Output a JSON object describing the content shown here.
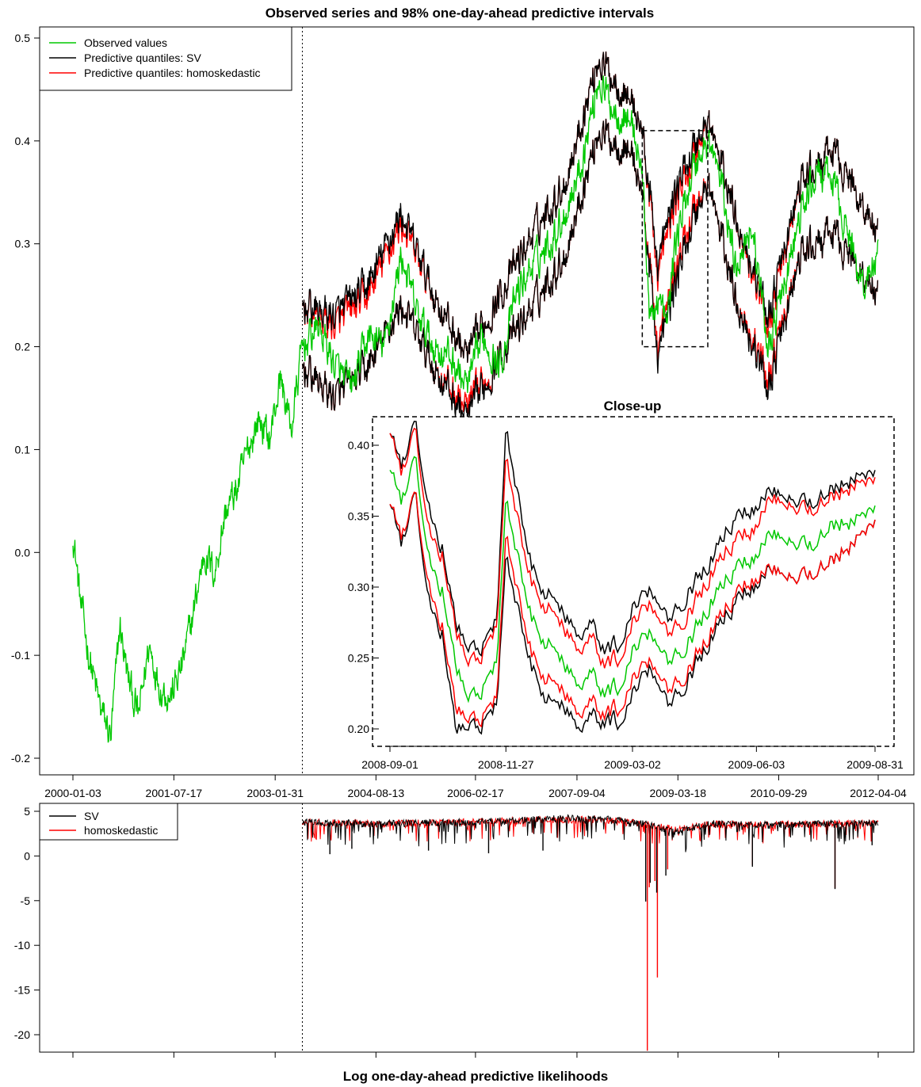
{
  "colors": {
    "observed": "#00c800",
    "sv": "#000000",
    "homoskedastic": "#ff0000",
    "frame": "#000000",
    "background": "#ffffff"
  },
  "chart_data": [
    {
      "id": "main",
      "type": "line",
      "title": "Observed series and 98% one-day-ahead predictive intervals",
      "xlabel": "",
      "ylabel": "",
      "x_ticks": [
        "2000-01-03",
        "2001-07-17",
        "2003-01-31",
        "2004-08-13",
        "2006-02-17",
        "2007-09-04",
        "2009-03-18",
        "2010-09-29",
        "2012-04-04"
      ],
      "xlim": [
        "2000-01-03",
        "2012-04-04"
      ],
      "y_ticks": [
        "-0.2",
        "-0.1",
        "0.0",
        "0.1",
        "0.2",
        "0.3",
        "0.4",
        "0.5"
      ],
      "ylim": [
        -0.2,
        0.5
      ],
      "forecast_start": "2003-07-01",
      "grid": false,
      "legend_position": "top-left",
      "legend": [
        {
          "label": "Observed values",
          "color": "#00c800"
        },
        {
          "label": "Predictive quantiles: SV",
          "color": "#000000"
        },
        {
          "label": "Predictive quantiles: homoskedastic",
          "color": "#ff0000"
        }
      ],
      "series": [
        {
          "name": "Observed values",
          "x": [
            "2000-01-03",
            "2000-02-15",
            "2000-04-01",
            "2000-06-01",
            "2000-08-01",
            "2000-09-20",
            "2000-11-01",
            "2001-01-01",
            "2001-03-01",
            "2001-05-01",
            "2001-07-01",
            "2001-09-01",
            "2001-11-01",
            "2002-01-01",
            "2002-03-01",
            "2002-05-01",
            "2002-07-01",
            "2002-09-01",
            "2002-11-01",
            "2003-01-01",
            "2003-03-01",
            "2003-05-01",
            "2003-07-01",
            "2003-10-01",
            "2004-01-01",
            "2004-04-01",
            "2004-07-01",
            "2004-10-01",
            "2005-01-01",
            "2005-04-01",
            "2005-07-01",
            "2005-10-01",
            "2006-01-01",
            "2006-04-01",
            "2006-07-01",
            "2006-10-01",
            "2007-01-01",
            "2007-04-01",
            "2007-07-01",
            "2007-10-01",
            "2008-01-01",
            "2008-04-01",
            "2008-07-01",
            "2008-09-01",
            "2008-10-15",
            "2008-11-27",
            "2009-01-15",
            "2009-03-02",
            "2009-04-15",
            "2009-06-03",
            "2009-08-31",
            "2009-11-01",
            "2010-02-01",
            "2010-05-01",
            "2010-08-01",
            "2010-11-01",
            "2011-02-01",
            "2011-05-01",
            "2011-08-01",
            "2011-11-01",
            "2012-01-15",
            "2012-04-04"
          ],
          "values": [
            0.02,
            -0.05,
            -0.1,
            -0.15,
            -0.18,
            -0.07,
            -0.12,
            -0.16,
            -0.09,
            -0.13,
            -0.14,
            -0.11,
            -0.06,
            0.0,
            -0.02,
            0.04,
            0.06,
            0.1,
            0.13,
            0.11,
            0.17,
            0.12,
            0.2,
            0.22,
            0.18,
            0.16,
            0.21,
            0.2,
            0.29,
            0.23,
            0.2,
            0.19,
            0.16,
            0.21,
            0.18,
            0.25,
            0.28,
            0.3,
            0.33,
            0.38,
            0.46,
            0.43,
            0.42,
            0.37,
            0.22,
            0.25,
            0.22,
            0.3,
            0.33,
            0.37,
            0.4,
            0.37,
            0.28,
            0.32,
            0.2,
            0.26,
            0.33,
            0.37,
            0.36,
            0.3,
            0.26,
            0.29
          ]
        },
        {
          "name": "Predictive quantiles: SV",
          "x": [
            "2003-07-01",
            "2004-01-01",
            "2004-07-01",
            "2005-01-01",
            "2005-07-01",
            "2006-01-01",
            "2006-07-01",
            "2007-01-01",
            "2007-07-01",
            "2008-01-01",
            "2008-07-01",
            "2008-09-01",
            "2008-11-27",
            "2009-03-02",
            "2009-06-03",
            "2009-08-31",
            "2010-02-01",
            "2010-08-01",
            "2011-02-01",
            "2011-08-01",
            "2012-04-04"
          ],
          "lower": [
            0.18,
            0.15,
            0.18,
            0.24,
            0.18,
            0.13,
            0.19,
            0.24,
            0.29,
            0.41,
            0.39,
            0.35,
            0.19,
            0.26,
            0.32,
            0.36,
            0.25,
            0.16,
            0.29,
            0.31,
            0.25
          ],
          "upper": [
            0.24,
            0.23,
            0.26,
            0.33,
            0.25,
            0.19,
            0.25,
            0.31,
            0.36,
            0.48,
            0.44,
            0.41,
            0.28,
            0.35,
            0.39,
            0.42,
            0.33,
            0.23,
            0.36,
            0.39,
            0.31
          ]
        },
        {
          "name": "Predictive quantiles: homoskedastic",
          "x": [
            "2003-07-01",
            "2004-01-01",
            "2004-07-01",
            "2005-01-01",
            "2005-07-01",
            "2006-01-01",
            "2006-07-01",
            "2007-01-01",
            "2007-07-01",
            "2008-01-01",
            "2008-07-01",
            "2008-09-01",
            "2008-11-27",
            "2009-03-02",
            "2009-06-03",
            "2009-08-31",
            "2010-02-01",
            "2010-08-01",
            "2011-02-01",
            "2011-08-01",
            "2012-04-04"
          ],
          "lower": [
            0.18,
            0.15,
            0.18,
            0.24,
            0.18,
            0.14,
            0.19,
            0.24,
            0.29,
            0.41,
            0.39,
            0.35,
            0.2,
            0.27,
            0.33,
            0.36,
            0.25,
            0.17,
            0.29,
            0.31,
            0.25
          ],
          "upper": [
            0.24,
            0.22,
            0.25,
            0.32,
            0.25,
            0.19,
            0.25,
            0.31,
            0.36,
            0.48,
            0.44,
            0.41,
            0.27,
            0.34,
            0.38,
            0.42,
            0.33,
            0.22,
            0.36,
            0.39,
            0.31
          ]
        }
      ]
    },
    {
      "id": "closeup",
      "type": "line",
      "title": "Close-up",
      "xlabel": "",
      "ylabel": "",
      "x_ticks": [
        "2008-09-01",
        "2008-11-27",
        "2009-03-02",
        "2009-06-03",
        "2009-08-31"
      ],
      "xlim": [
        "2008-09-01",
        "2009-08-31"
      ],
      "y_ticks": [
        "0.20",
        "0.25",
        "0.30",
        "0.35",
        "0.40"
      ],
      "ylim": [
        0.2,
        0.41
      ],
      "grid": false,
      "series": [
        {
          "name": "Observed values",
          "x": [
            "2008-09-01",
            "2008-09-10",
            "2008-09-20",
            "2008-09-30",
            "2008-10-10",
            "2008-10-20",
            "2008-10-30",
            "2008-11-10",
            "2008-11-20",
            "2008-11-27",
            "2008-12-10",
            "2008-12-20",
            "2008-12-30",
            "2009-01-10",
            "2009-01-20",
            "2009-01-30",
            "2009-02-10",
            "2009-02-20",
            "2009-03-02",
            "2009-03-15",
            "2009-03-30",
            "2009-04-15",
            "2009-04-30",
            "2009-05-15",
            "2009-05-30",
            "2009-06-15",
            "2009-06-30",
            "2009-07-15",
            "2009-07-30",
            "2009-08-15",
            "2009-08-31"
          ],
          "values": [
            0.378,
            0.36,
            0.385,
            0.32,
            0.3,
            0.245,
            0.22,
            0.23,
            0.245,
            0.36,
            0.3,
            0.27,
            0.26,
            0.245,
            0.235,
            0.24,
            0.225,
            0.23,
            0.255,
            0.27,
            0.25,
            0.265,
            0.29,
            0.31,
            0.32,
            0.34,
            0.335,
            0.33,
            0.345,
            0.345,
            0.355
          ]
        },
        {
          "name": "Predictive quantiles: SV",
          "x": [
            "2008-09-01",
            "2008-09-10",
            "2008-09-20",
            "2008-09-30",
            "2008-10-10",
            "2008-10-20",
            "2008-10-30",
            "2008-11-10",
            "2008-11-20",
            "2008-11-27",
            "2008-12-10",
            "2008-12-20",
            "2008-12-30",
            "2009-01-10",
            "2009-01-20",
            "2009-01-30",
            "2009-02-10",
            "2009-02-20",
            "2009-03-02",
            "2009-03-15",
            "2009-03-30",
            "2009-04-15",
            "2009-04-30",
            "2009-05-15",
            "2009-05-30",
            "2009-06-15",
            "2009-06-30",
            "2009-07-15",
            "2009-07-30",
            "2009-08-15",
            "2009-08-31"
          ],
          "lower": [
            0.354,
            0.33,
            0.36,
            0.29,
            0.27,
            0.2,
            0.2,
            0.205,
            0.215,
            0.32,
            0.265,
            0.235,
            0.22,
            0.215,
            0.205,
            0.21,
            0.205,
            0.205,
            0.225,
            0.245,
            0.22,
            0.24,
            0.265,
            0.285,
            0.3,
            0.315,
            0.31,
            0.31,
            0.32,
            0.33,
            0.345
          ],
          "upper": [
            0.404,
            0.385,
            0.41,
            0.355,
            0.33,
            0.275,
            0.255,
            0.26,
            0.275,
            0.41,
            0.34,
            0.305,
            0.295,
            0.28,
            0.27,
            0.275,
            0.255,
            0.26,
            0.285,
            0.3,
            0.28,
            0.3,
            0.32,
            0.345,
            0.355,
            0.37,
            0.365,
            0.36,
            0.37,
            0.375,
            0.38
          ]
        },
        {
          "name": "Predictive quantiles: homoskedastic",
          "x": [
            "2008-09-01",
            "2008-09-10",
            "2008-09-20",
            "2008-09-30",
            "2008-10-10",
            "2008-10-20",
            "2008-10-30",
            "2008-11-10",
            "2008-11-20",
            "2008-11-27",
            "2008-12-10",
            "2008-12-20",
            "2008-12-30",
            "2009-01-10",
            "2009-01-20",
            "2009-01-30",
            "2009-02-10",
            "2009-02-20",
            "2009-03-02",
            "2009-03-15",
            "2009-03-30",
            "2009-04-15",
            "2009-04-30",
            "2009-05-15",
            "2009-05-30",
            "2009-06-15",
            "2009-06-30",
            "2009-07-15",
            "2009-07-30",
            "2009-08-15",
            "2009-08-31"
          ],
          "lower": [
            0.354,
            0.335,
            0.36,
            0.3,
            0.275,
            0.215,
            0.205,
            0.21,
            0.22,
            0.335,
            0.275,
            0.245,
            0.235,
            0.225,
            0.215,
            0.22,
            0.21,
            0.215,
            0.235,
            0.25,
            0.23,
            0.245,
            0.27,
            0.29,
            0.305,
            0.315,
            0.31,
            0.31,
            0.32,
            0.33,
            0.345
          ],
          "upper": [
            0.404,
            0.38,
            0.405,
            0.34,
            0.325,
            0.27,
            0.245,
            0.255,
            0.27,
            0.39,
            0.325,
            0.295,
            0.285,
            0.27,
            0.26,
            0.265,
            0.245,
            0.25,
            0.275,
            0.29,
            0.27,
            0.285,
            0.31,
            0.33,
            0.34,
            0.365,
            0.36,
            0.355,
            0.365,
            0.37,
            0.375
          ]
        }
      ]
    },
    {
      "id": "likelihoods",
      "type": "line",
      "title": "Log one-day-ahead predictive likelihoods",
      "xlabel": "",
      "ylabel": "",
      "xlim": [
        "2000-01-03",
        "2012-04-04"
      ],
      "y_ticks": [
        "-20",
        "-15",
        "-10",
        "-5",
        "0",
        "5"
      ],
      "ylim": [
        -22,
        5
      ],
      "forecast_start": "2003-07-01",
      "grid": false,
      "legend_position": "top-left",
      "legend": [
        {
          "label": "SV",
          "color": "#000000"
        },
        {
          "label": "homoskedastic",
          "color": "#ff0000"
        }
      ],
      "series": [
        {
          "name": "SV",
          "baseline": {
            "x": [
              "2003-07-01",
              "2004-07-01",
              "2005-07-01",
              "2006-07-01",
              "2007-07-01",
              "2008-04-01",
              "2008-09-01",
              "2009-03-01",
              "2009-10-01",
              "2010-07-01",
              "2011-07-01",
              "2012-04-04"
            ],
            "values": [
              3.8,
              3.6,
              3.7,
              3.9,
              4.2,
              4.1,
              3.6,
              2.8,
              3.6,
              3.5,
              3.6,
              3.7
            ]
          },
          "spikes": [
            {
              "x": "2003-12-01",
              "value": 0.2
            },
            {
              "x": "2004-04-01",
              "value": 0.8
            },
            {
              "x": "2005-06-01",
              "value": 0.6
            },
            {
              "x": "2006-05-01",
              "value": 0.3
            },
            {
              "x": "2007-02-27",
              "value": 0.6
            },
            {
              "x": "2008-09-20",
              "value": -5.1
            },
            {
              "x": "2008-10-15",
              "value": -3.0
            },
            {
              "x": "2008-11-20",
              "value": -4.1
            },
            {
              "x": "2009-01-10",
              "value": -2.2
            },
            {
              "x": "2010-05-06",
              "value": -1.2
            },
            {
              "x": "2011-08-08",
              "value": -3.7
            },
            {
              "x": "2012-03-01",
              "value": 1.2
            }
          ]
        },
        {
          "name": "homoskedastic",
          "baseline": {
            "x": [
              "2003-07-01",
              "2004-07-01",
              "2005-07-01",
              "2006-07-01",
              "2007-07-01",
              "2008-04-01",
              "2008-09-01",
              "2009-03-01",
              "2009-10-01",
              "2010-07-01",
              "2011-07-01",
              "2012-04-04"
            ],
            "values": [
              3.8,
              3.6,
              3.7,
              3.9,
              4.1,
              4.0,
              3.6,
              3.0,
              3.6,
              3.5,
              3.6,
              3.7
            ]
          },
          "spikes": [
            {
              "x": "2008-09-29",
              "value": -21.8
            },
            {
              "x": "2008-10-10",
              "value": -3.5
            },
            {
              "x": "2008-11-10",
              "value": -2.8
            },
            {
              "x": "2008-11-24",
              "value": -13.6
            },
            {
              "x": "2009-01-20",
              "value": -1.5
            },
            {
              "x": "2010-05-06",
              "value": -1.0
            },
            {
              "x": "2011-08-08",
              "value": -3.6
            }
          ]
        }
      ]
    }
  ]
}
